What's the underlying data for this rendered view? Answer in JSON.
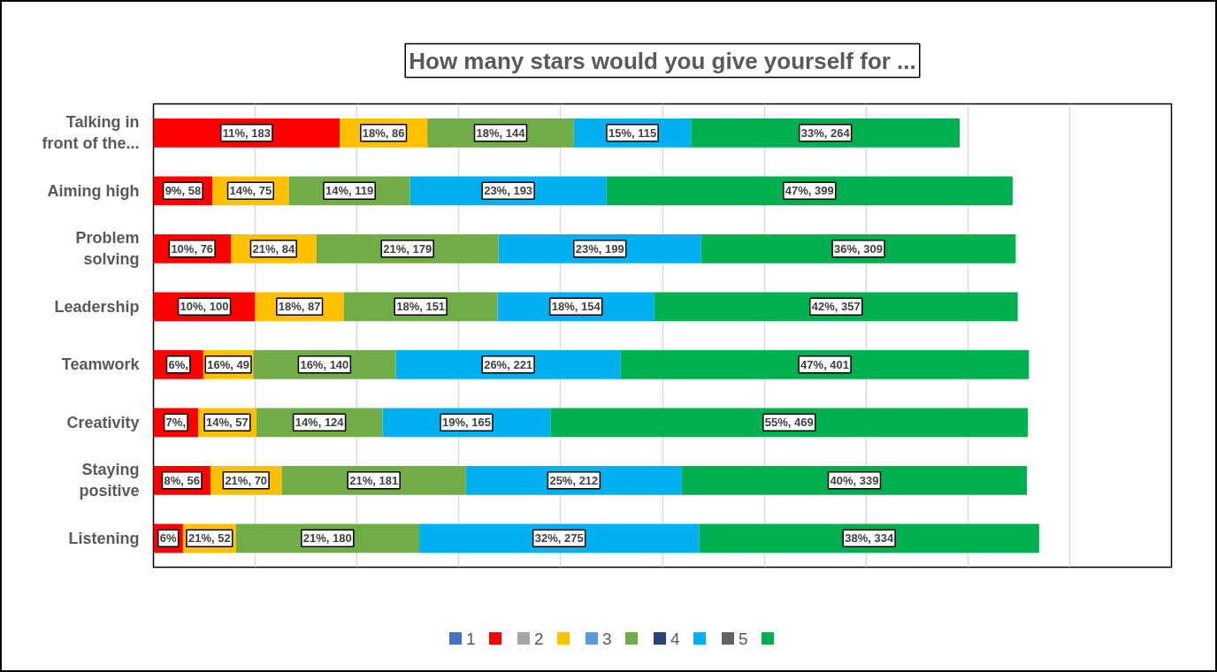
{
  "chart_data": {
    "type": "bar",
    "orientation": "horizontal",
    "stacked": true,
    "title": "How many stars would you give yourself for ...",
    "categories": [
      "Talking in front of the...",
      "Aiming high",
      "Problem solving",
      "Leadership",
      "Teamwork",
      "Creativity",
      "Staying positive",
      "Listening"
    ],
    "xlim": [
      0,
      1000
    ],
    "xticks": [
      {
        "value": 0,
        "label": null
      },
      {
        "value": 100,
        "label": null
      },
      {
        "value": 200,
        "label": null
      },
      {
        "value": 300,
        "label": null
      },
      {
        "value": 400,
        "label": null
      },
      {
        "value": 500,
        "label": null
      },
      {
        "value": 600,
        "label": null
      },
      {
        "value": 700,
        "label": null
      },
      {
        "value": 800,
        "label": null
      },
      {
        "value": 900,
        "label": null
      },
      {
        "value": 1000,
        "label": null
      }
    ],
    "grid": "x",
    "tick_labels": "y",
    "legend": "bottom",
    "annotations": [
      {
        "text": "6%,",
        "x": 24.5,
        "y": "Teamwork"
      },
      {
        "text": "7%,",
        "x": 22,
        "y": "Creativity"
      },
      {
        "text": "6%",
        "x": 14.5,
        "y": "Listening"
      }
    ],
    "series": [
      {
        "name": "1",
        "color": "#4472c4",
        "values": [
          null,
          null,
          null,
          null,
          null,
          null,
          null,
          null
        ]
      },
      {
        "color": "#ff0000",
        "values": [
          183,
          58,
          76,
          100,
          49,
          44,
          56,
          29
        ],
        "value_labels": [
          "11%, 183",
          "9%, 58",
          "10%, 76",
          "10%, 100",
          null,
          null,
          "8%, 56",
          null
        ]
      },
      {
        "name": "2",
        "color": "#a5a5a5",
        "values": [
          null,
          null,
          null,
          null,
          null,
          null,
          null,
          null
        ]
      },
      {
        "color": "#ffc000",
        "values": [
          86,
          75,
          84,
          87,
          49,
          57,
          70,
          52
        ],
        "value_labels": [
          "18%, 86",
          "14%, 75",
          "21%, 84",
          "18%, 87",
          "16%, 49",
          "14%, 57",
          "21%, 70",
          "21%, 52"
        ]
      },
      {
        "name": "3",
        "color": "#5b9bd5",
        "values": [
          null,
          null,
          null,
          null,
          null,
          null,
          null,
          null
        ]
      },
      {
        "color": "#70ad47",
        "values": [
          144,
          119,
          179,
          151,
          140,
          124,
          181,
          180
        ],
        "value_labels": [
          "18%, 144",
          "14%, 119",
          "21%, 179",
          "18%, 151",
          "16%, 140",
          "14%, 124",
          "21%, 181",
          "21%, 180"
        ]
      },
      {
        "name": "4",
        "color": "#264478",
        "values": [
          null,
          null,
          null,
          null,
          null,
          null,
          null,
          null
        ]
      },
      {
        "color": "#00b0f0",
        "values": [
          115,
          193,
          199,
          154,
          221,
          165,
          212,
          275
        ],
        "value_labels": [
          "15%, 115",
          "23%, 193",
          "23%, 199",
          "18%, 154",
          "26%, 221",
          "19%, 165",
          "25%, 212",
          "32%, 275"
        ]
      },
      {
        "name": "5",
        "color": "#636363",
        "values": [
          null,
          null,
          null,
          null,
          null,
          null,
          null,
          null
        ]
      },
      {
        "color": "#00b050",
        "values": [
          264,
          399,
          309,
          357,
          401,
          469,
          339,
          334
        ],
        "value_labels": [
          "33%, 264",
          "47%, 399",
          "36%, 309",
          "42%, 357",
          "47%, 401",
          "55%, 469",
          "40%, 339",
          "38%, 334"
        ]
      }
    ]
  }
}
